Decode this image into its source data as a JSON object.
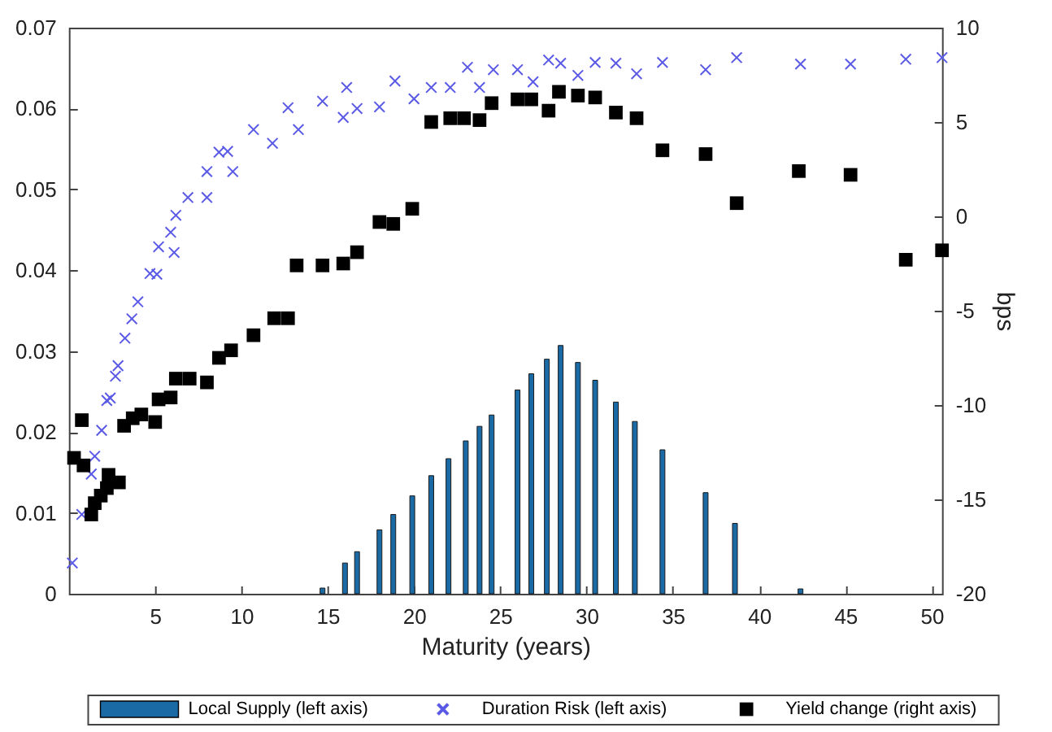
{
  "chart_data": {
    "type": "scatter",
    "xlabel": "Maturity (years)",
    "y2label": "bps",
    "xlim": [
      0,
      50.6
    ],
    "xticks": [
      5,
      10,
      15,
      20,
      25,
      30,
      35,
      40,
      45,
      50
    ],
    "ylim": [
      0,
      0.07
    ],
    "yticks": [
      0,
      0.01,
      0.02,
      0.03,
      0.04,
      0.05,
      0.06,
      0.07
    ],
    "y2lim": [
      -20,
      10
    ],
    "y2ticks": [
      -20,
      -15,
      -10,
      -5,
      0,
      5,
      10
    ],
    "grid": false,
    "legend": "bottom",
    "series": [
      {
        "name": "Local Supply (left axis)",
        "type": "bar",
        "color": "#1a6aa6",
        "x": [
          14.7,
          16.0,
          16.7,
          18.0,
          18.8,
          19.9,
          21.0,
          22.0,
          23.0,
          23.8,
          24.5,
          26.0,
          26.8,
          27.7,
          28.5,
          29.5,
          30.5,
          31.7,
          32.8,
          34.4,
          36.9,
          38.6,
          42.4
        ],
        "values": [
          0.0007,
          0.0038,
          0.0052,
          0.0079,
          0.0098,
          0.0121,
          0.0146,
          0.0167,
          0.0189,
          0.0207,
          0.0221,
          0.0252,
          0.0272,
          0.029,
          0.0307,
          0.0286,
          0.0264,
          0.0237,
          0.0213,
          0.0178,
          0.0125,
          0.0087,
          0.0006
        ]
      },
      {
        "name": "Duration Risk (left axis)",
        "marker": "cross",
        "color": "#5a5ae6",
        "x": [
          0.2,
          0.75,
          1.3,
          1.5,
          1.9,
          2.2,
          2.4,
          2.7,
          2.85,
          3.25,
          3.65,
          4.0,
          4.7,
          5.1,
          5.2,
          5.9,
          6.1,
          6.2,
          6.9,
          8.0,
          8.0,
          8.7,
          9.2,
          9.5,
          10.7,
          11.8,
          12.7,
          13.3,
          14.7,
          15.9,
          16.1,
          16.7,
          18.0,
          18.9,
          20.0,
          21.0,
          22.1,
          23.1,
          23.8,
          24.6,
          26.0,
          26.9,
          27.8,
          28.5,
          29.5,
          30.5,
          31.7,
          32.9,
          34.4,
          36.9,
          38.7,
          42.4,
          45.3,
          48.5,
          50.6
        ],
        "values": [
          0.0038,
          0.0098,
          0.0148,
          0.017,
          0.0202,
          0.0239,
          0.0242,
          0.0269,
          0.0282,
          0.0316,
          0.034,
          0.0361,
          0.0396,
          0.0395,
          0.0429,
          0.0447,
          0.0422,
          0.0468,
          0.049,
          0.049,
          0.0522,
          0.0546,
          0.0547,
          0.0522,
          0.0574,
          0.0557,
          0.0601,
          0.0574,
          0.0609,
          0.0589,
          0.0626,
          0.06,
          0.0602,
          0.0634,
          0.0612,
          0.0626,
          0.0626,
          0.0651,
          0.0626,
          0.0648,
          0.0648,
          0.0633,
          0.066,
          0.0656,
          0.0641,
          0.0657,
          0.0656,
          0.0643,
          0.0657,
          0.0648,
          0.0663,
          0.0655,
          0.0655,
          0.0661,
          0.0663
        ]
      },
      {
        "name": "Yield change (right axis)",
        "type": "scatter",
        "marker": "square",
        "axis": "y2",
        "color": "#000000",
        "x": [
          0.3,
          0.75,
          0.85,
          1.3,
          1.5,
          1.85,
          2.2,
          2.3,
          2.9,
          3.2,
          3.7,
          4.2,
          5.0,
          5.2,
          5.9,
          6.2,
          7.0,
          8.0,
          8.7,
          9.4,
          10.7,
          11.9,
          12.7,
          13.2,
          14.7,
          15.9,
          16.7,
          18.0,
          18.8,
          19.9,
          21.0,
          22.1,
          22.9,
          23.8,
          24.5,
          26.0,
          26.8,
          27.8,
          28.4,
          29.5,
          30.5,
          31.7,
          32.9,
          34.4,
          36.9,
          38.7,
          42.3,
          45.3,
          48.5,
          50.6
        ],
        "values": [
          -12.8,
          -10.8,
          -13.2,
          -15.8,
          -15.2,
          -14.8,
          -14.4,
          -13.7,
          -14.1,
          -11.1,
          -10.7,
          -10.5,
          -10.9,
          -9.7,
          -9.6,
          -8.6,
          -8.6,
          -8.8,
          -7.5,
          -7.1,
          -6.3,
          -5.4,
          -5.4,
          -2.6,
          -2.6,
          -2.5,
          -1.9,
          -0.3,
          -0.4,
          0.4,
          5.0,
          5.2,
          5.2,
          5.1,
          6.0,
          6.2,
          6.2,
          5.6,
          6.6,
          6.4,
          6.3,
          5.5,
          5.2,
          3.5,
          3.3,
          0.7,
          2.4,
          2.2,
          -2.3,
          -1.8
        ]
      }
    ]
  }
}
